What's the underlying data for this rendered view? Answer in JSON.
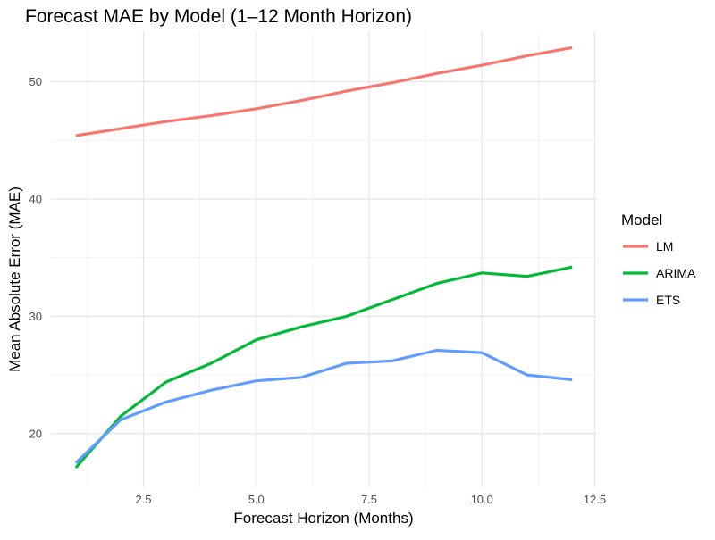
{
  "chart_data": {
    "type": "line",
    "title": "Forecast MAE by Model (1–12 Month Horizon)",
    "xlabel": "Forecast Horizon (Months)",
    "ylabel": "Mean Absolute Error (MAE)",
    "xlim": [
      0.45,
      12.55
    ],
    "ylim": [
      15.5,
      54.3
    ],
    "x_ticks": [
      "2.5",
      "5.0",
      "7.5",
      "10.0",
      "12.5"
    ],
    "y_ticks": [
      "20",
      "30",
      "40",
      "50"
    ],
    "grid": true,
    "legend": {
      "title": "Model",
      "position": "right"
    },
    "x": [
      1,
      2,
      3,
      4,
      5,
      6,
      7,
      8,
      9,
      10,
      11,
      12
    ],
    "series": [
      {
        "name": "LM",
        "color": "#F8766D",
        "values": [
          45.4,
          46.0,
          46.6,
          47.1,
          47.7,
          48.4,
          49.2,
          49.9,
          50.7,
          51.4,
          52.2,
          52.9
        ]
      },
      {
        "name": "ARIMA",
        "color": "#00BA38",
        "values": [
          17.1,
          21.5,
          24.4,
          26.0,
          28.0,
          29.1,
          30.0,
          31.4,
          32.8,
          33.7,
          33.4,
          34.2
        ]
      },
      {
        "name": "ETS",
        "color": "#619CFF",
        "values": [
          17.5,
          21.2,
          22.7,
          23.7,
          24.5,
          24.8,
          26.0,
          26.2,
          27.1,
          26.9,
          25.0,
          24.6
        ]
      }
    ]
  }
}
